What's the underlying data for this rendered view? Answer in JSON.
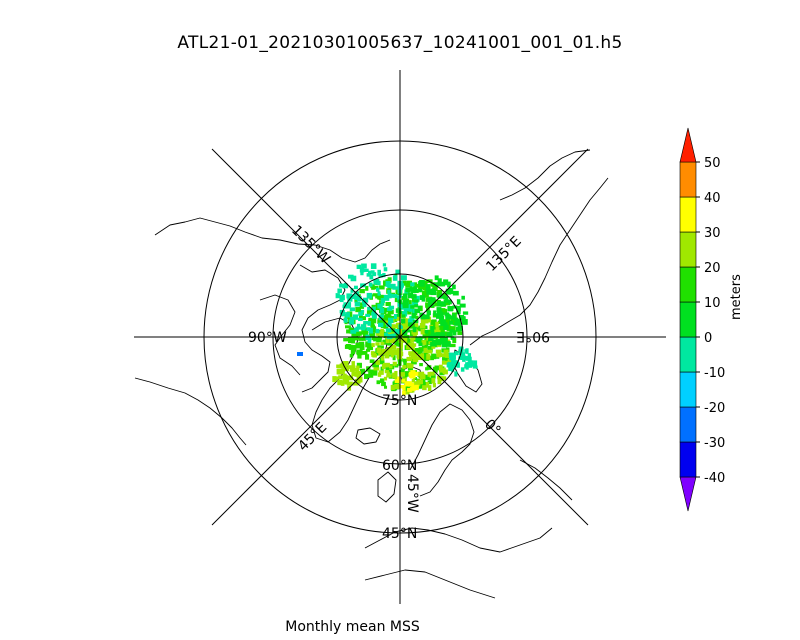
{
  "title": "ATL21-01_20210301005637_10241001_001_01.h5",
  "caption": "Monthly mean MSS",
  "map": {
    "projection": "north-polar-stereographic",
    "parallels": [
      {
        "lat": 75,
        "label": "75°N"
      },
      {
        "lat": 60,
        "label": "60°N"
      },
      {
        "lat": 45,
        "label": "45°N"
      }
    ],
    "meridians": [
      {
        "lon": 135,
        "label": "135°E"
      },
      {
        "lon": 90,
        "label": "90°E"
      },
      {
        "lon": 45,
        "label": "45°E"
      },
      {
        "lon": 0,
        "label": "0°"
      },
      {
        "lon": -45,
        "label": "45°W"
      },
      {
        "lon": -90,
        "label": "90°W"
      },
      {
        "lon": -135,
        "label": "135°W"
      }
    ]
  },
  "colorbar": {
    "label": "meters",
    "ticks": [
      "50",
      "40",
      "30",
      "20",
      "10",
      "0",
      "-10",
      "-20",
      "-30",
      "-40"
    ],
    "bins": [
      {
        "from": -50,
        "to": -40,
        "color": "#7f00ff"
      },
      {
        "from": -40,
        "to": -30,
        "color": "#0000f0"
      },
      {
        "from": -30,
        "to": -20,
        "color": "#0070ff"
      },
      {
        "from": -20,
        "to": -10,
        "color": "#00d0ff"
      },
      {
        "from": -10,
        "to": 0,
        "color": "#00e8a0"
      },
      {
        "from": 0,
        "to": 10,
        "color": "#00e020"
      },
      {
        "from": 10,
        "to": 20,
        "color": "#20e000"
      },
      {
        "from": 20,
        "to": 30,
        "color": "#a0e800"
      },
      {
        "from": 30,
        "to": 40,
        "color": "#ffff00"
      },
      {
        "from": 40,
        "to": 50,
        "color": "#ff8c00"
      },
      {
        "from": 50,
        "to": 60,
        "color": "#ff2000"
      }
    ]
  }
}
